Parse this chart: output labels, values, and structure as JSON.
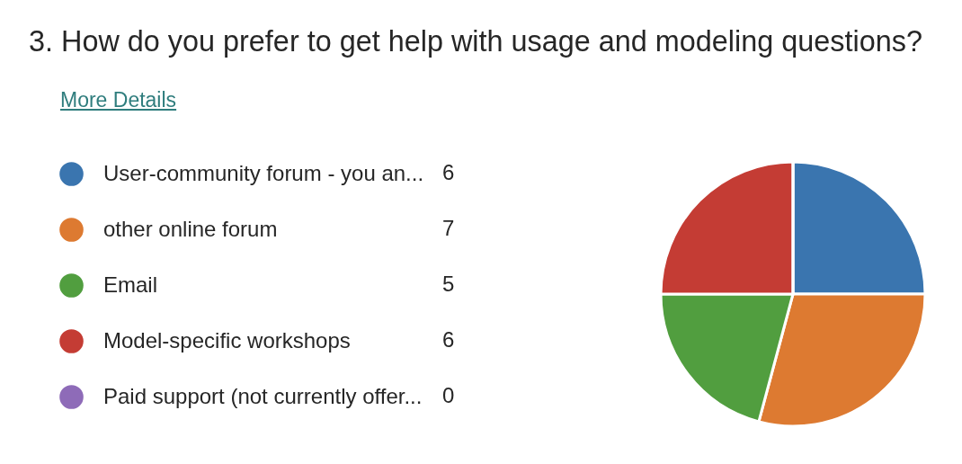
{
  "chart_data": {
    "type": "pie",
    "title": "3. How do you prefer to get help with usage and modeling questions?",
    "annotations": [
      "More Details"
    ],
    "categories": [
      "User-community forum - you an...",
      "other online forum",
      "Email",
      "Model-specific workshops",
      "Paid support (not currently offer..."
    ],
    "values": [
      6,
      7,
      5,
      6,
      0
    ],
    "value_labels": [
      "6",
      "7",
      "5",
      "6",
      "0"
    ],
    "colors": [
      "#3a75af",
      "#dd7a31",
      "#519e3f",
      "#c43c34",
      "#8e6bb8"
    ],
    "legend": "left"
  }
}
